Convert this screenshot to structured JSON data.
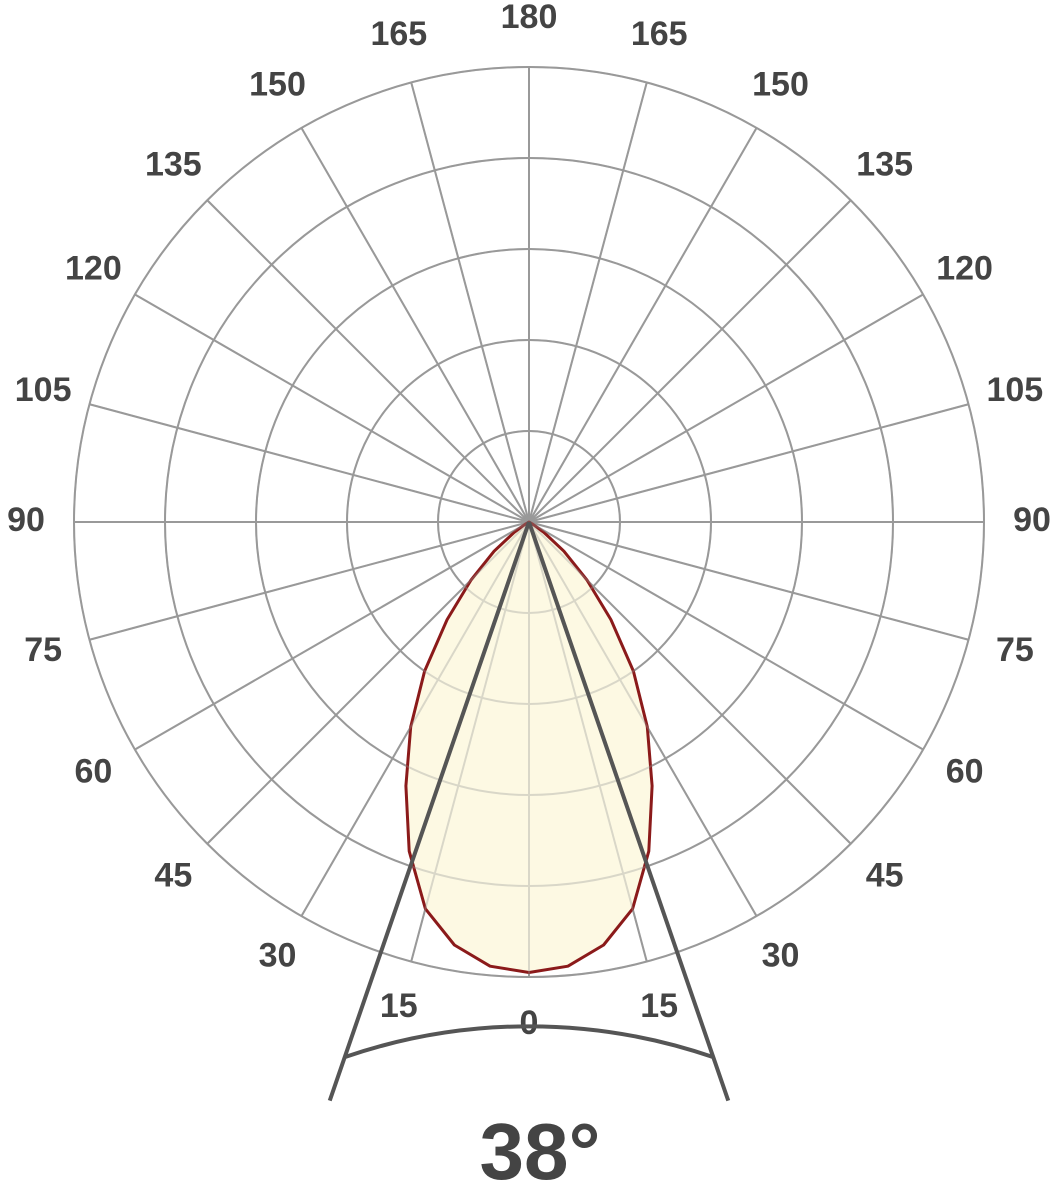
{
  "chart_data": {
    "type": "polar",
    "angles": [
      -65,
      -60,
      -55,
      -50,
      -45,
      -40,
      -35,
      -30,
      -25,
      -20,
      -15,
      -10,
      -5,
      0,
      5,
      10,
      15,
      20,
      25,
      30,
      35,
      40,
      45,
      50,
      55,
      60,
      65
    ],
    "values": [
      0,
      0.05,
      0.2,
      0.5,
      0.9,
      1.4,
      2.0,
      2.6,
      3.2,
      3.85,
      4.4,
      4.72,
      4.9,
      4.95,
      4.9,
      4.72,
      4.4,
      3.85,
      3.2,
      2.6,
      2.0,
      1.4,
      0.9,
      0.5,
      0.2,
      0.05,
      0
    ],
    "color": "#8b1a1a",
    "fill": "#fdf9e3",
    "rlim": [
      0,
      5
    ],
    "rticks": [
      1,
      2,
      3,
      4,
      5
    ],
    "thetaticks": [
      0,
      15,
      30,
      45,
      60,
      75,
      90,
      105,
      120,
      135,
      150,
      165,
      180
    ],
    "grid": true,
    "beam_angle": {
      "value": 38,
      "label": "38°"
    }
  }
}
